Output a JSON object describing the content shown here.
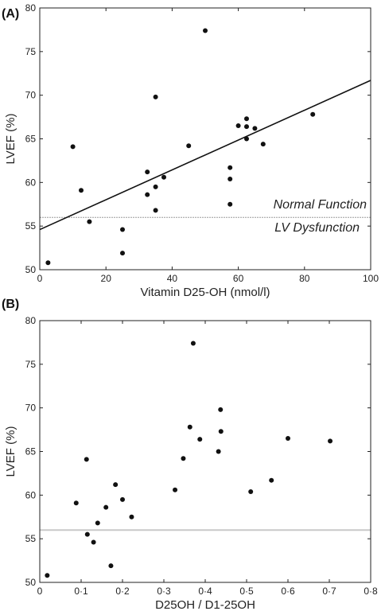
{
  "chart_data": [
    {
      "type": "scatter",
      "panel_label": "(A)",
      "xlabel": "Vitamin D25-OH (nmol/l)",
      "ylabel": "LVEF (%)",
      "xlim": [
        0,
        100
      ],
      "ylim": [
        50,
        80
      ],
      "xticks": [
        0,
        20,
        40,
        60,
        80,
        100
      ],
      "xtick_labels": [
        "0",
        "20",
        "40",
        "60",
        "80",
        "100"
      ],
      "yticks": [
        50,
        55,
        60,
        65,
        70,
        75,
        80
      ],
      "ytick_labels": [
        "50",
        "55",
        "60",
        "65",
        "70",
        "75",
        "80"
      ],
      "x": [
        2.5,
        10,
        12.5,
        15,
        25,
        25,
        32.5,
        32.5,
        35,
        35,
        35,
        37.5,
        45,
        50,
        57.5,
        57.5,
        57.5,
        60,
        62.5,
        62.5,
        62.5,
        65,
        67.5,
        82.5
      ],
      "y": [
        50.8,
        64.1,
        59.1,
        55.5,
        54.6,
        51.9,
        61.2,
        58.6,
        59.5,
        56.8,
        69.8,
        60.6,
        64.2,
        77.4,
        61.7,
        60.4,
        57.5,
        66.5,
        66.4,
        67.3,
        65.0,
        66.2,
        64.4,
        67.8
      ],
      "regression_line": {
        "x": [
          0,
          100
        ],
        "y": [
          54.6,
          71.7
        ]
      },
      "reference_line": {
        "y": 56
      },
      "annotations": [
        "Normal Function",
        "LV Dysfunction"
      ],
      "grid": false
    },
    {
      "type": "scatter",
      "panel_label": "(B)",
      "xlabel": "D25OH / D1-25OH",
      "ylabel": "LVEF (%)",
      "xlim": [
        0,
        0.8
      ],
      "ylim": [
        50,
        80
      ],
      "xticks": [
        0,
        0.1,
        0.2,
        0.3,
        0.4,
        0.5,
        0.6,
        0.7,
        0.8
      ],
      "xtick_labels": [
        "0",
        "0·1",
        "0·2",
        "0·3",
        "0·4",
        "0·5",
        "0·6",
        "0·7",
        "0·8"
      ],
      "yticks": [
        50,
        55,
        60,
        65,
        70,
        75,
        80
      ],
      "ytick_labels": [
        "50",
        "55",
        "60",
        "65",
        "70",
        "75",
        "80"
      ],
      "x": [
        0.018,
        0.088,
        0.113,
        0.115,
        0.13,
        0.14,
        0.16,
        0.172,
        0.183,
        0.2,
        0.222,
        0.327,
        0.347,
        0.363,
        0.371,
        0.387,
        0.432,
        0.437,
        0.438,
        0.51,
        0.56,
        0.6,
        0.702
      ],
      "y": [
        50.8,
        59.1,
        64.1,
        55.5,
        54.6,
        56.8,
        58.6,
        51.9,
        61.2,
        59.5,
        57.5,
        60.6,
        64.2,
        67.8,
        77.4,
        66.4,
        65.0,
        69.8,
        67.3,
        60.4,
        61.7,
        66.5,
        66.2
      ],
      "reference_line": {
        "y": 56
      },
      "grid": false
    }
  ]
}
